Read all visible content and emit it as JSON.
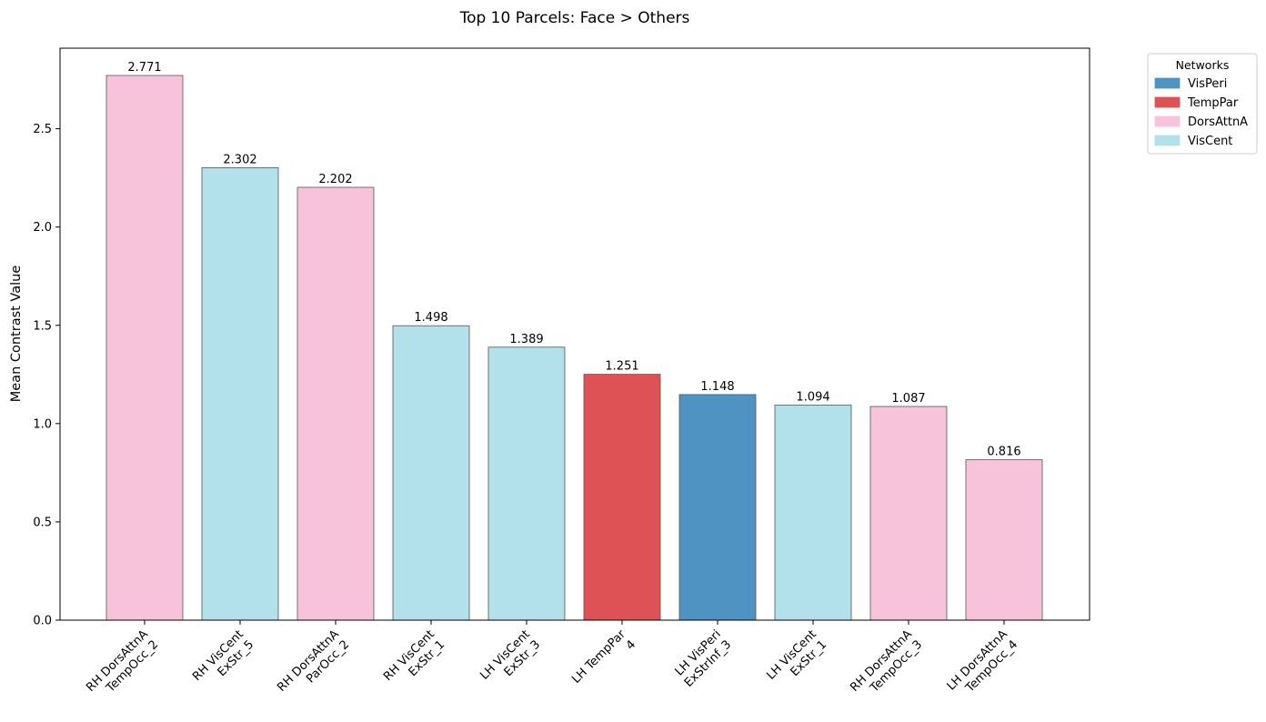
{
  "chart_data": {
    "type": "bar",
    "title": "Top 10 Parcels: Face > Others",
    "xlabel": "",
    "ylabel": "Mean Contrast Value",
    "ylim": [
      0,
      2.91
    ],
    "yticks": [
      0.0,
      0.5,
      1.0,
      1.5,
      2.0,
      2.5
    ],
    "ytick_labels": [
      "0.0",
      "0.5",
      "1.0",
      "1.5",
      "2.0",
      "2.5"
    ],
    "grid": false,
    "categories": [
      [
        "RH DorsAttnA",
        "TempOcc_2"
      ],
      [
        "RH VisCent",
        "ExStr_5"
      ],
      [
        "RH DorsAttnA",
        "ParOcc_2"
      ],
      [
        "RH VisCent",
        "ExStr_1"
      ],
      [
        "LH VisCent",
        "ExStr_3"
      ],
      [
        "LH TempPar",
        "4"
      ],
      [
        "LH VisPeri",
        "ExStrInf_3"
      ],
      [
        "LH VisCent",
        "ExStr_1"
      ],
      [
        "RH DorsAttnA",
        "TempOcc_3"
      ],
      [
        "LH DorsAttnA",
        "TempOcc_4"
      ]
    ],
    "values": [
      2.771,
      2.302,
      2.202,
      1.498,
      1.389,
      1.251,
      1.148,
      1.094,
      1.087,
      0.816
    ],
    "value_labels": [
      "2.771",
      "2.302",
      "2.202",
      "1.498",
      "1.389",
      "1.251",
      "1.148",
      "1.094",
      "1.087",
      "0.816"
    ],
    "networks": [
      "DorsAttnA",
      "VisCent",
      "DorsAttnA",
      "VisCent",
      "VisCent",
      "TempPar",
      "VisPeri",
      "VisCent",
      "DorsAttnA",
      "DorsAttnA"
    ],
    "legend": {
      "title": "Networks",
      "placement": "outside-top-right",
      "entries": [
        {
          "name": "VisPeri",
          "color": "#4e93c2"
        },
        {
          "name": "TempPar",
          "color": "#de5255"
        },
        {
          "name": "DorsAttnA",
          "color": "#f7c3da"
        },
        {
          "name": "VisCent",
          "color": "#b2e1eb"
        }
      ]
    },
    "colors": {
      "VisPeri": "#4e93c2",
      "TempPar": "#de5255",
      "DorsAttnA": "#f7c3da",
      "VisCent": "#b2e1eb"
    }
  }
}
